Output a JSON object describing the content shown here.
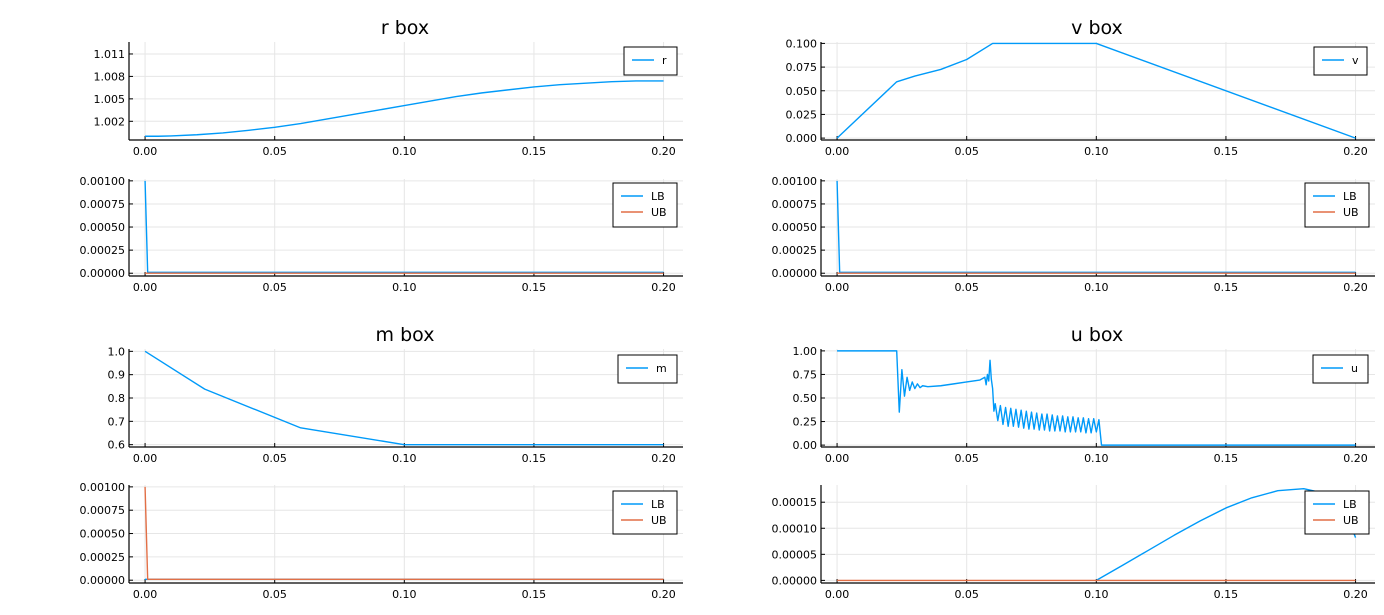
{
  "chart_data": [
    {
      "type": "line",
      "title": "r box",
      "xlim": [
        -0.0062,
        0.2075
      ],
      "ylim": [
        999.5,
        1012.6
      ],
      "y_scale": 1000,
      "xticks": [
        0,
        0.05,
        0.1,
        0.15,
        0.2
      ],
      "xtick_labels": [
        "0.00",
        "0.05",
        "0.10",
        "0.15",
        "0.20"
      ],
      "yticks": [
        1.002,
        1.005,
        1.008,
        1.011
      ],
      "ytick_labels": [
        "1.002",
        "1.005",
        "1.008",
        "1.011"
      ],
      "legend_position": "top-right",
      "grid": true,
      "series": [
        {
          "name": "r",
          "color": "#009af9",
          "x": [
            0,
            0.005,
            0.01,
            0.02,
            0.03,
            0.04,
            0.05,
            0.06,
            0.07,
            0.08,
            0.09,
            0.1,
            0.11,
            0.12,
            0.13,
            0.14,
            0.15,
            0.16,
            0.17,
            0.18,
            0.19,
            0.2
          ],
          "y": [
            1.0,
            1.0,
            1.00005,
            1.0002,
            1.00045,
            1.0008,
            1.0012,
            1.0017,
            1.0023,
            1.0029,
            1.0035,
            1.0041,
            1.0047,
            1.0053,
            1.0058,
            1.0062,
            1.0066,
            1.0069,
            1.0071,
            1.0073,
            1.0074,
            1.0074
          ]
        }
      ]
    },
    {
      "type": "line",
      "title": "v box",
      "xlim": [
        -0.0062,
        0.2075
      ],
      "ylim": [
        -0.002,
        0.1015
      ],
      "xticks": [
        0,
        0.05,
        0.1,
        0.15,
        0.2
      ],
      "xtick_labels": [
        "0.00",
        "0.05",
        "0.10",
        "0.15",
        "0.20"
      ],
      "yticks": [
        0,
        0.025,
        0.05,
        0.075,
        0.1
      ],
      "ytick_labels": [
        "0.000",
        "0.025",
        "0.050",
        "0.075",
        "0.100"
      ],
      "legend_position": "top-right",
      "grid": true,
      "series": [
        {
          "name": "v",
          "color": "#009af9",
          "x": [
            0,
            0.023,
            0.03,
            0.04,
            0.05,
            0.06,
            0.1,
            0.2
          ],
          "y": [
            0.0,
            0.0595,
            0.0655,
            0.0725,
            0.083,
            0.1,
            0.1,
            0.0
          ]
        }
      ]
    },
    {
      "type": "line",
      "xlim": [
        -0.0062,
        0.2075
      ],
      "ylim": [
        -3e-05,
        0.00102
      ],
      "xticks": [
        0,
        0.05,
        0.1,
        0.15,
        0.2
      ],
      "xtick_labels": [
        "0.00",
        "0.05",
        "0.10",
        "0.15",
        "0.20"
      ],
      "yticks": [
        0,
        0.00025,
        0.0005,
        0.00075,
        0.001
      ],
      "ytick_labels": [
        "0.00000",
        "0.00025",
        "0.00050",
        "0.00075",
        "0.00100"
      ],
      "legend_position": "top-right",
      "grid": true,
      "series": [
        {
          "name": "LB",
          "color": "#009af9",
          "x": [
            0,
            0.001,
            0.2
          ],
          "y": [
            0.001,
            1e-05,
            1e-05
          ]
        },
        {
          "name": "UB",
          "color": "#e26f46",
          "x": [
            0,
            0.2
          ],
          "y": [
            0.0,
            0.0
          ]
        }
      ]
    },
    {
      "type": "line",
      "xlim": [
        -0.0062,
        0.2075
      ],
      "ylim": [
        -3e-05,
        0.00102
      ],
      "xticks": [
        0,
        0.05,
        0.1,
        0.15,
        0.2
      ],
      "xtick_labels": [
        "0.00",
        "0.05",
        "0.10",
        "0.15",
        "0.20"
      ],
      "yticks": [
        0,
        0.00025,
        0.0005,
        0.00075,
        0.001
      ],
      "ytick_labels": [
        "0.00000",
        "0.00025",
        "0.00050",
        "0.00075",
        "0.00100"
      ],
      "legend_position": "top-right",
      "grid": true,
      "series": [
        {
          "name": "LB",
          "color": "#009af9",
          "x": [
            0,
            0.001,
            0.2
          ],
          "y": [
            0.001,
            1e-05,
            1e-05
          ]
        },
        {
          "name": "UB",
          "color": "#e26f46",
          "x": [
            0,
            0.2
          ],
          "y": [
            0.0,
            0.0
          ]
        }
      ]
    },
    {
      "type": "line",
      "title": "m box",
      "xlim": [
        -0.0062,
        0.2075
      ],
      "ylim": [
        0.59,
        1.01
      ],
      "xticks": [
        0,
        0.05,
        0.1,
        0.15,
        0.2
      ],
      "xtick_labels": [
        "0.00",
        "0.05",
        "0.10",
        "0.15",
        "0.20"
      ],
      "yticks": [
        0.6,
        0.7,
        0.8,
        0.9,
        1.0
      ],
      "ytick_labels": [
        "0.6",
        "0.7",
        "0.8",
        "0.9",
        "1.0"
      ],
      "legend_position": "top-right",
      "grid": true,
      "series": [
        {
          "name": "m",
          "color": "#009af9",
          "x": [
            0,
            0.023,
            0.06,
            0.1,
            0.2
          ],
          "y": [
            1.0,
            0.838,
            0.672,
            0.6,
            0.6
          ]
        }
      ]
    },
    {
      "type": "line",
      "title": "u box",
      "xlim": [
        -0.0062,
        0.2075
      ],
      "ylim": [
        -0.02,
        1.02
      ],
      "xticks": [
        0,
        0.05,
        0.1,
        0.15,
        0.2
      ],
      "xtick_labels": [
        "0.00",
        "0.05",
        "0.10",
        "0.15",
        "0.20"
      ],
      "yticks": [
        0,
        0.25,
        0.5,
        0.75,
        1.0
      ],
      "ytick_labels": [
        "0.00",
        "0.25",
        "0.50",
        "0.75",
        "1.00"
      ],
      "legend_position": "top-right",
      "grid": true,
      "series": [
        {
          "name": "u",
          "color": "#009af9",
          "x": [
            0,
            0.023,
            0.024,
            0.025,
            0.026,
            0.027,
            0.028,
            0.029,
            0.03,
            0.031,
            0.032,
            0.033,
            0.035,
            0.04,
            0.045,
            0.05,
            0.055,
            0.057,
            0.0575,
            0.058,
            0.0585,
            0.059,
            0.0595,
            0.06,
            0.0605,
            0.061,
            0.062,
            0.063,
            0.064,
            0.065,
            0.066,
            0.067,
            0.068,
            0.069,
            0.07,
            0.071,
            0.072,
            0.073,
            0.074,
            0.075,
            0.076,
            0.077,
            0.078,
            0.079,
            0.08,
            0.081,
            0.082,
            0.083,
            0.084,
            0.085,
            0.086,
            0.087,
            0.088,
            0.089,
            0.09,
            0.091,
            0.092,
            0.093,
            0.094,
            0.095,
            0.096,
            0.097,
            0.098,
            0.099,
            0.1,
            0.101,
            0.102,
            0.103,
            0.2
          ],
          "y": [
            1.0,
            1.0,
            0.35,
            0.8,
            0.52,
            0.72,
            0.58,
            0.67,
            0.6,
            0.65,
            0.61,
            0.63,
            0.62,
            0.63,
            0.65,
            0.67,
            0.69,
            0.72,
            0.64,
            0.75,
            0.68,
            0.9,
            0.7,
            0.6,
            0.36,
            0.44,
            0.26,
            0.42,
            0.22,
            0.4,
            0.2,
            0.39,
            0.2,
            0.38,
            0.19,
            0.37,
            0.18,
            0.36,
            0.17,
            0.35,
            0.17,
            0.34,
            0.16,
            0.33,
            0.16,
            0.33,
            0.15,
            0.32,
            0.15,
            0.31,
            0.15,
            0.31,
            0.14,
            0.3,
            0.14,
            0.3,
            0.14,
            0.29,
            0.14,
            0.29,
            0.13,
            0.28,
            0.13,
            0.28,
            0.14,
            0.27,
            0.0,
            0.0,
            0.0
          ]
        }
      ]
    },
    {
      "type": "line",
      "xlim": [
        -0.0062,
        0.2075
      ],
      "ylim": [
        -3e-05,
        0.00102
      ],
      "xticks": [
        0,
        0.05,
        0.1,
        0.15,
        0.2
      ],
      "xtick_labels": [
        "0.00",
        "0.05",
        "0.10",
        "0.15",
        "0.20"
      ],
      "yticks": [
        0,
        0.00025,
        0.0005,
        0.00075,
        0.001
      ],
      "ytick_labels": [
        "0.00000",
        "0.00025",
        "0.00050",
        "0.00075",
        "0.00100"
      ],
      "legend_position": "top-right",
      "grid": true,
      "series": [
        {
          "name": "LB",
          "color": "#009af9",
          "x": [
            0,
            0.2
          ],
          "y": [
            1e-05,
            1e-05
          ]
        },
        {
          "name": "UB",
          "color": "#e26f46",
          "x": [
            0,
            0.001,
            0.2
          ],
          "y": [
            0.001,
            1e-05,
            1e-05
          ]
        }
      ]
    },
    {
      "type": "line",
      "xlim": [
        -0.0062,
        0.2075
      ],
      "ylim": [
        -5e-06,
        0.000183
      ],
      "xticks": [
        0,
        0.05,
        0.1,
        0.15,
        0.2
      ],
      "xtick_labels": [
        "0.00",
        "0.05",
        "0.10",
        "0.15",
        "0.20"
      ],
      "yticks": [
        0,
        5e-05,
        0.0001,
        0.00015
      ],
      "ytick_labels": [
        "0.00000",
        "0.00005",
        "0.00010",
        "0.00015"
      ],
      "legend_position": "top-right",
      "grid": true,
      "series": [
        {
          "name": "LB",
          "color": "#009af9",
          "x": [
            0.1,
            0.11,
            0.12,
            0.13,
            0.14,
            0.15,
            0.16,
            0.17,
            0.18,
            0.19,
            0.195,
            0.2
          ],
          "y": [
            0.0,
            2.85e-05,
            5.75e-05,
            8.65e-05,
            0.000114,
            0.000139,
            0.0001585,
            0.000172,
            0.000176,
            0.000165,
            0.000145,
            8.2e-05
          ]
        },
        {
          "name": "UB",
          "color": "#e26f46",
          "x": [
            0,
            0.2
          ],
          "y": [
            0.0,
            0.0
          ]
        }
      ]
    }
  ]
}
